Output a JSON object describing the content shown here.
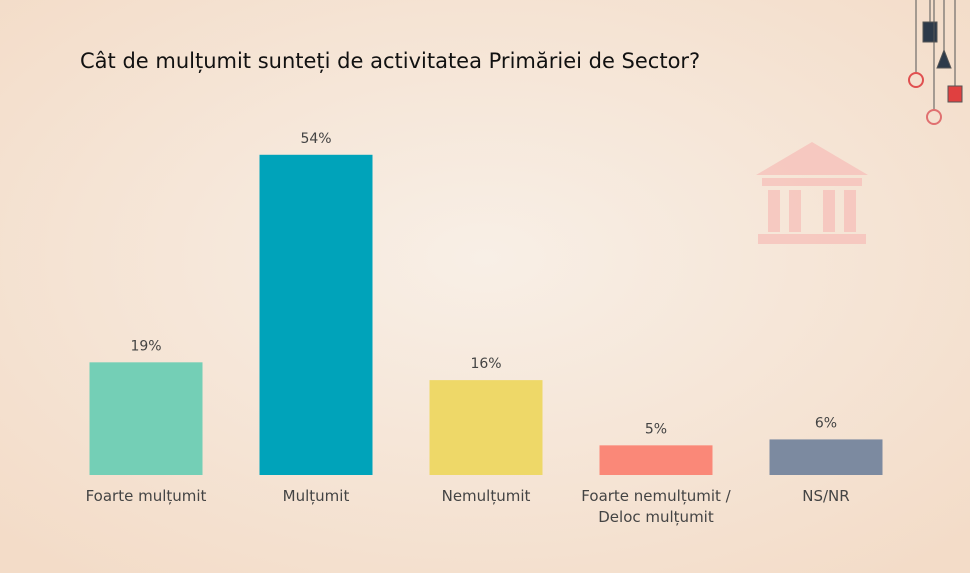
{
  "chart_data": {
    "type": "bar",
    "title": "Cât de mulțumit sunteți de activitatea Primăriei de Sector?",
    "categories": [
      "Foarte mulțumit",
      "Mulțumit",
      "Nemulțumit",
      "Foarte nemulțumit /\nDeloc mulțumit",
      "NS/NR"
    ],
    "values": [
      19,
      54,
      16,
      5,
      6
    ],
    "value_labels": [
      "19%",
      "54%",
      "16%",
      "5%",
      "6%"
    ],
    "colors": [
      "#74cfb6",
      "#00a3ba",
      "#eed868",
      "#fa8878",
      "#7c8aa0"
    ]
  }
}
